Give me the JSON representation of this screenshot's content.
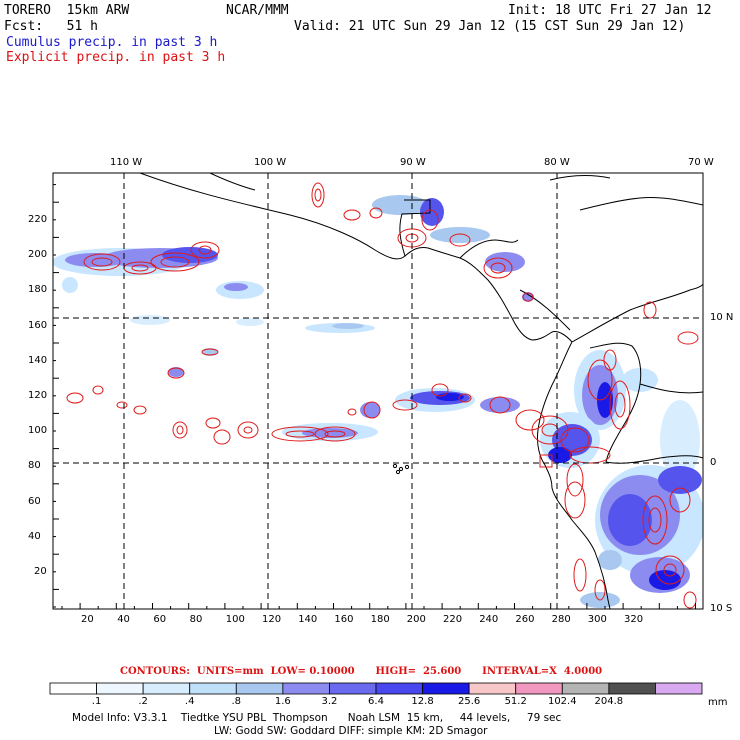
{
  "header": {
    "model": "TORERO  15km ARW",
    "org": "NCAR/MMM",
    "init": "Init: 18 UTC Fri 27 Jan 12",
    "fcst": "Fcst:   51 h",
    "valid": "Valid: 21 UTC Sun 29 Jan 12 (15 CST Sun 29 Jan 12)",
    "cumulus": "Cumulus precip. in past 3 h",
    "explicit": "Explicit precip. in past 3 h"
  },
  "axes": {
    "top_lon_labels": [
      "110 W",
      "100 W",
      "90 W",
      "80 W",
      "70 W"
    ],
    "right_lat_labels": [
      "10 N",
      "0",
      "10 S"
    ],
    "x_ticks": [
      "20",
      "40",
      "60",
      "80",
      "100",
      "120",
      "140",
      "160",
      "180",
      "200",
      "220",
      "240",
      "260",
      "280",
      "300",
      "320"
    ],
    "y_ticks": [
      "20",
      "40",
      "60",
      "80",
      "100",
      "120",
      "140",
      "160",
      "180",
      "200",
      "220"
    ]
  },
  "colors": {
    "light_blue": "#c8e6ff",
    "mid_blue": "#8c8cf0",
    "blue": "#5555ee",
    "dark_blue": "#1a1ae6",
    "contour_red": "#e01a1a",
    "coast": "#000000"
  },
  "contours_line": "CONTOURS:  UNITS=mm  LOW= 0.10000      HIGH=  25.600      INTERVAL=X  4.0000",
  "colorbar": {
    "colors": [
      "#ffffff",
      "#eef6ff",
      "#d8eeff",
      "#c0e0fa",
      "#a8c8f0",
      "#8c8cf0",
      "#6a6aee",
      "#4848ee",
      "#1a1ae6",
      "#f8c8c8",
      "#f098c0",
      "#b4b4b4",
      "#505050",
      "#d8a8f0"
    ],
    "labels": [
      ".1",
      ".2",
      ".4",
      ".8",
      "1.6",
      "3.2",
      "6.4",
      "12.8",
      "25.6",
      "51.2",
      "102.4",
      "204.8"
    ],
    "unit": "mm"
  },
  "model_info": {
    "line1": "Model Info: V3.3.1    Tiedtke YSU PBL  Thompson      Noah LSM  15 km,     44 levels,     79 sec",
    "line2": "LW: Godd SW: Goddard DIFF: simple KM: 2D Smagor"
  }
}
